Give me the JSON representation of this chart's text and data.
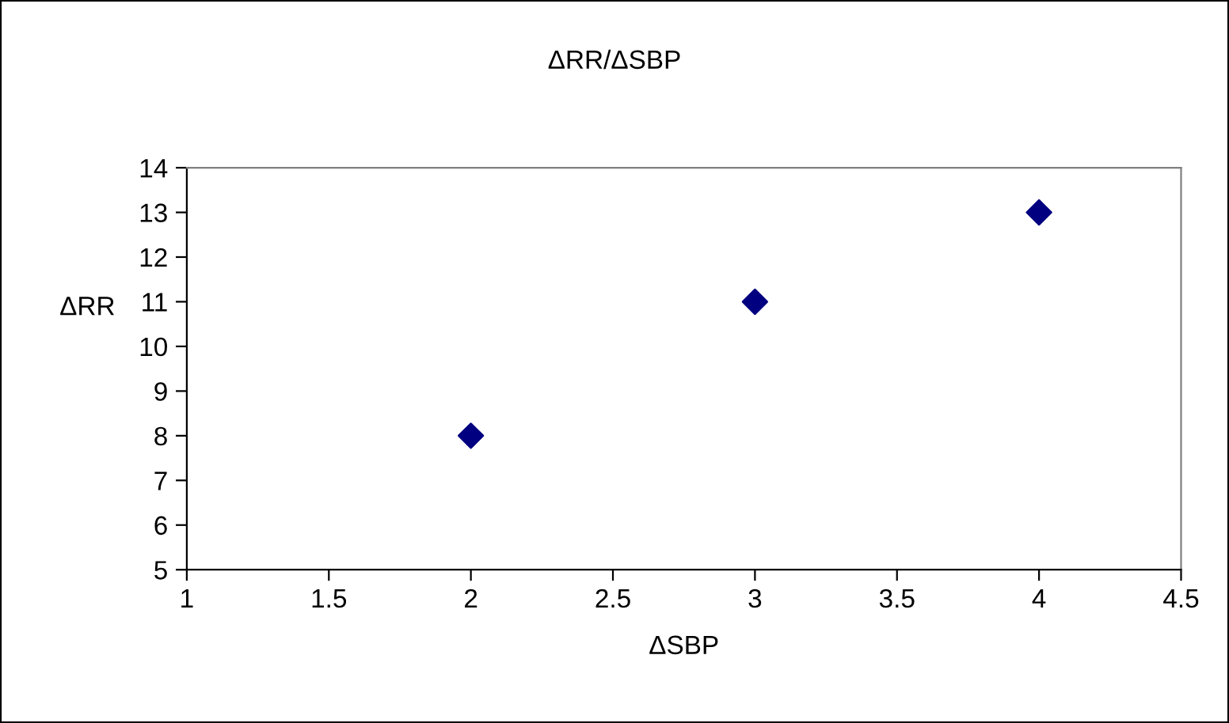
{
  "chart_data": {
    "type": "scatter",
    "title": "ΔRR/ΔSBP",
    "xlabel": "ΔSBP",
    "ylabel": "ΔRR",
    "x": [
      2,
      3,
      4
    ],
    "series": [
      {
        "color": "#000080",
        "values": [
          8,
          11,
          13
        ]
      }
    ],
    "xlim": [
      1,
      4.5
    ],
    "xticks": [
      1,
      1.5,
      2,
      2.5,
      3,
      3.5,
      4,
      4.5
    ],
    "ylim": [
      5,
      14
    ],
    "yticks": [
      5,
      6,
      7,
      8,
      9,
      10,
      11,
      12,
      13,
      14
    ],
    "grid": false,
    "legend": false,
    "marker": "diamond"
  }
}
